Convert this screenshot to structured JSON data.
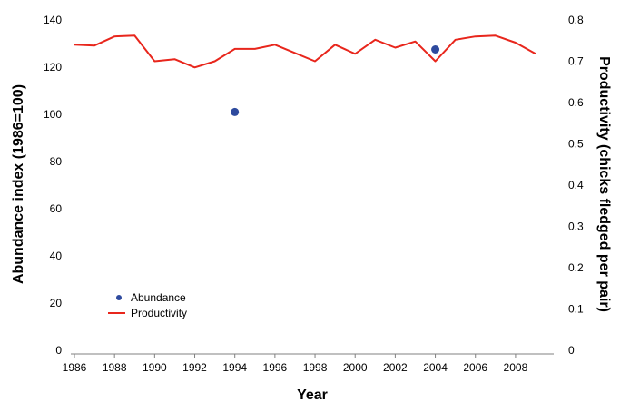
{
  "chart_data": {
    "type": "line",
    "xlabel": "Year",
    "ylabel_left": "Abundance index (1986=100)",
    "ylabel_right": "Productivity (chicks fledged per pair)",
    "xlim": [
      1986,
      2009
    ],
    "x_ticks": [
      1986,
      1988,
      1990,
      1992,
      1994,
      1996,
      1998,
      2000,
      2002,
      2004,
      2006,
      2008
    ],
    "ylim_left": [
      0,
      140
    ],
    "y_ticks_left": [
      0,
      20,
      40,
      60,
      80,
      100,
      120,
      140
    ],
    "ylim_right": [
      0,
      0.8
    ],
    "y_ticks_right": [
      "0",
      "0.1",
      "0.2",
      "0.3",
      "0.4",
      "0.5",
      "0.6",
      "0.7",
      "0.8"
    ],
    "grid": false,
    "legend_position": "bottom-left",
    "series": [
      {
        "name": "Abundance",
        "type": "scatter",
        "axis": "left",
        "color": "#2e4a9e",
        "x": [
          1994,
          2004
        ],
        "y": [
          101,
          127.5
        ]
      },
      {
        "name": "Productivity",
        "type": "line",
        "axis": "right",
        "color": "#e8261c",
        "x": [
          1986,
          1987,
          1988,
          1989,
          1990,
          1991,
          1992,
          1993,
          1994,
          1995,
          1996,
          1997,
          1998,
          1999,
          2000,
          2001,
          2002,
          2003,
          2004,
          2005,
          2006,
          2007,
          2008,
          2009
        ],
        "y": [
          0.74,
          0.738,
          0.76,
          0.762,
          0.7,
          0.705,
          0.685,
          0.7,
          0.73,
          0.73,
          0.74,
          0.72,
          0.7,
          0.74,
          0.718,
          0.752,
          0.733,
          0.748,
          0.7,
          0.752,
          0.76,
          0.762,
          0.745,
          0.718
        ]
      }
    ]
  }
}
